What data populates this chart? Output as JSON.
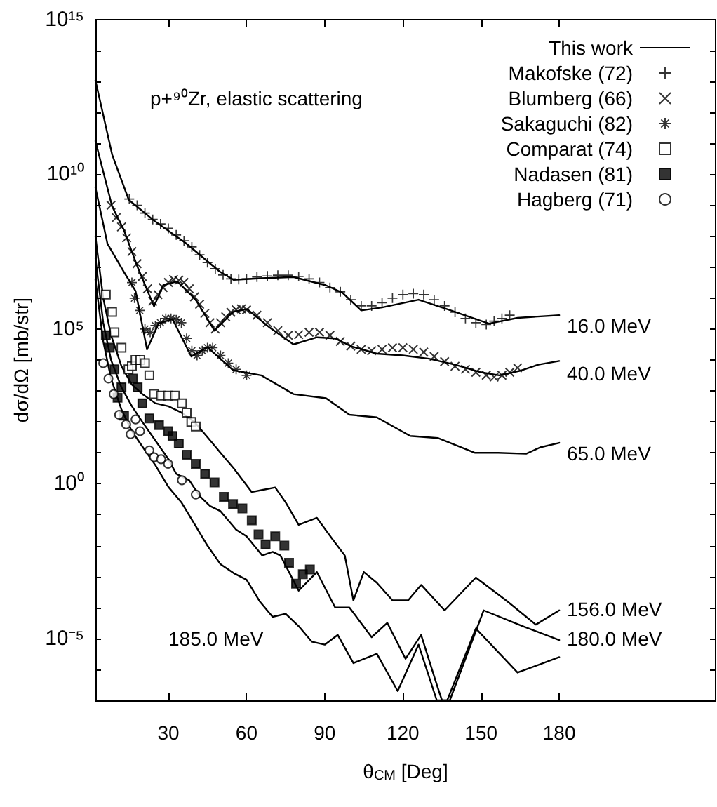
{
  "chart_data": {
    "type": "line",
    "title": "p+⁹⁰Zr, elastic scattering",
    "xlabel": "θ$_{CM}$ [Deg]",
    "ylabel": "dσ/dΩ [mb/str]",
    "log": "y",
    "legend": "top right",
    "grid": false,
    "xlim": [
      2,
      240
    ],
    "xticks": [
      30,
      60,
      90,
      120,
      150,
      180
    ],
    "ylim": [
      1e-07,
      1000000000000000.0
    ],
    "yticks": [
      {
        "value": 1e-07,
        "label": null
      },
      {
        "value": 1e-06,
        "label": null
      },
      {
        "value": 1e-05,
        "label": "10⁻⁵"
      },
      {
        "value": 0.0001,
        "label": null
      },
      {
        "value": 0.001,
        "label": null
      },
      {
        "value": 0.01,
        "label": null
      },
      {
        "value": 0.1,
        "label": null
      },
      {
        "value": 1,
        "label": "10⁰"
      },
      {
        "value": 10.0,
        "label": null
      },
      {
        "value": 100.0,
        "label": null
      },
      {
        "value": 1000.0,
        "label": null
      },
      {
        "value": 10000.0,
        "label": null
      },
      {
        "value": 100000.0,
        "label": "10⁵"
      },
      {
        "value": 1000000.0,
        "label": null
      },
      {
        "value": 10000000.0,
        "label": null
      },
      {
        "value": 100000000.0,
        "label": null
      },
      {
        "value": 1000000000.0,
        "label": null
      },
      {
        "value": 10000000000.0,
        "label": "10¹⁰"
      },
      {
        "value": 100000000000.0,
        "label": null
      },
      {
        "value": 1000000000000.0,
        "label": null
      },
      {
        "value": 10000000000000.0,
        "label": null
      },
      {
        "value": 100000000000000.0,
        "label": null
      },
      {
        "value": 1000000000000000.0,
        "label": "10¹⁵"
      }
    ],
    "annotations": [
      "16.0 MeV",
      "40.0 MeV",
      "65.0 MeV",
      "156.0 MeV",
      "180.0 MeV",
      "185.0 MeV"
    ],
    "series": [
      {
        "name": "This work",
        "color": "#000000",
        "marker": "none",
        "x": [
          2,
          8.4,
          14.8,
          24.5,
          36.8,
          49.7,
          55,
          65.7,
          78,
          90.4,
          96.8,
          104,
          112,
          126,
          137,
          153,
          164,
          180
        ],
        "values": [
          11000000000000.0,
          44000000000.0,
          1500000000.0,
          320000000.0,
          59000000.0,
          7200000.0,
          3900000.0,
          4400000.0,
          4800000.0,
          2600000.0,
          1500000.0,
          400000.0,
          500000.0,
          890000.0,
          440000.0,
          150000.0,
          230000.0,
          280000.0
        ]
      },
      {
        "color": "#000000",
        "marker": "none",
        "x": [
          2,
          8.4,
          12.9,
          18.2,
          24.5,
          28,
          33.4,
          40.5,
          47.7,
          54.8,
          60.2,
          69,
          78,
          87,
          94,
          100,
          110,
          120,
          130,
          140,
          150,
          157,
          165,
          172,
          180
        ],
        "values": [
          120000000000.0,
          930000000.0,
          160000000.0,
          10000000.0,
          540000.0,
          2600000.0,
          3500000.0,
          890000.0,
          89000.0,
          360000.0,
          440000.0,
          110000.0,
          32000.0,
          54000.0,
          50000.0,
          28000.0,
          16000.0,
          14000.0,
          11000.0,
          7100.0,
          4000.0,
          3200.0,
          4500.0,
          7100.0,
          9300.0
        ]
      },
      {
        "color": "#000000",
        "marker": "none",
        "x": [
          2,
          6.6,
          12.9,
          17.4,
          21.8,
          26.2,
          31.6,
          38.8,
          45,
          54.8,
          65.6,
          78,
          90.5,
          99.5,
          110,
          122.8,
          133.4,
          147.7,
          156.6,
          167.3,
          172.7,
          180
        ],
        "values": [
          3800000000.0,
          58000000.0,
          7100000.0,
          1700000.0,
          22000.0,
          150000.0,
          210000.0,
          13000.0,
          26000.0,
          4700.0,
          3200.0,
          790,
          580,
          170,
          140,
          35,
          30,
          10,
          10,
          9.3,
          15,
          21
        ]
      },
      {
        "color": "#000000",
        "marker": "none",
        "x": [
          2,
          5,
          8,
          12,
          16,
          20,
          25,
          30,
          35,
          40,
          45,
          50,
          55,
          62,
          66,
          71,
          75,
          80,
          87,
          93,
          97.7,
          101,
          105,
          110,
          116,
          122,
          127,
          136,
          148,
          160,
          171,
          180
        ],
        "values": [
          100000000.0,
          1000000.0,
          63000.0,
          6300.0,
          1600.0,
          790,
          400,
          320,
          200,
          100,
          32,
          10,
          3.2,
          0.54,
          0.63,
          0.76,
          0.25,
          0.047,
          0.079,
          0.016,
          0.0048,
          0.00017,
          0.0014,
          0.00063,
          0.00017,
          0.00017,
          0.00054,
          8.1e-05,
          0.00093,
          0.00016,
          2.8e-05,
          8.1e-05
        ]
      },
      {
        "color": "#000000",
        "marker": "none",
        "x": [
          2,
          5,
          8,
          12,
          16,
          20,
          25,
          30,
          33,
          38,
          42,
          46,
          50,
          56,
          60,
          66,
          70,
          73,
          80,
          87,
          94,
          99.5,
          108,
          114,
          121,
          127,
          133,
          135,
          138,
          151,
          166,
          180
        ],
        "values": [
          20000000.0,
          160000.0,
          10000.0,
          1300.0,
          320,
          100,
          25,
          6.3,
          2.1,
          1.3,
          0.4,
          0.19,
          0.13,
          0.033,
          0.02,
          0.0048,
          0.0063,
          0.0048,
          0.00035,
          0.0014,
          0.0001,
          0.0001,
          1.1e-05,
          3.2e-05,
          2.2e-06,
          1.3e-05,
          3.2e-07,
          1e-07,
          1e-07,
          8.1e-05,
          2.5e-05,
          8.9e-06
        ]
      },
      {
        "color": "#000000",
        "marker": "none",
        "x": [
          2,
          5,
          8,
          12,
          16,
          20,
          25,
          30,
          35,
          40,
          45,
          50,
          55,
          60,
          65,
          70,
          75,
          80,
          85,
          90,
          95,
          101,
          110,
          118,
          126,
          133,
          137,
          148,
          164,
          180
        ],
        "values": [
          4000000.0,
          40000.0,
          2500.0,
          250,
          50,
          16,
          4.0,
          0.79,
          0.25,
          0.05,
          0.01,
          0.0025,
          0.0013,
          0.00079,
          0.00016,
          5e-05,
          6.3e-05,
          2.5e-05,
          7.9e-06,
          6.3e-06,
          1.3e-05,
          1.6e-06,
          3.2e-06,
          2e-07,
          6.3e-06,
          1e-07,
          1e-07,
          2.1e-05,
          7.9e-07,
          2.5e-06
        ]
      },
      {
        "name": "Makofske (72)",
        "type": "scatter",
        "color": "#000000",
        "marker": "plus",
        "x": [
          15,
          18,
          21,
          24,
          27,
          30,
          33,
          36,
          39,
          42,
          45,
          48,
          51,
          54,
          57,
          60,
          64,
          68,
          72,
          76,
          80,
          84,
          88,
          92,
          96,
          100,
          104,
          108,
          112,
          116,
          120,
          124,
          128,
          132,
          136,
          140,
          144,
          148,
          152,
          155,
          158,
          161
        ],
        "values": [
          1600000000.0,
          1000000000.0,
          560000000.0,
          350000000.0,
          250000000.0,
          180000000.0,
          110000000.0,
          71000000.0,
          45000000.0,
          25000000.0,
          14000000.0,
          8900000.0,
          5600000.0,
          4200000.0,
          4000000.0,
          4200000.0,
          4800000.0,
          5200000.0,
          5500000.0,
          5500000.0,
          5000000.0,
          4200000.0,
          3200000.0,
          2200000.0,
          1600000.0,
          890000.0,
          560000.0,
          560000.0,
          710000.0,
          1000000.0,
          1300000.0,
          1400000.0,
          1300000.0,
          890000.0,
          560000.0,
          350000.0,
          220000.0,
          160000.0,
          140000.0,
          180000.0,
          220000.0,
          280000.0
        ]
      },
      {
        "name": "Blumberg (66)",
        "type": "scatter",
        "color": "#000000",
        "marker": "cross",
        "x": [
          8,
          10,
          12,
          14,
          16,
          18,
          20,
          22,
          24,
          26,
          28,
          30,
          32,
          34,
          36,
          38,
          40,
          42,
          44,
          46,
          48,
          50,
          52,
          54,
          56,
          58,
          60,
          64,
          68,
          72,
          76,
          80,
          84,
          88,
          92,
          96,
          100,
          104,
          108,
          112,
          116,
          120,
          124,
          128,
          132,
          136,
          140,
          144,
          148,
          152,
          155,
          158,
          161,
          164
        ],
        "values": [
          1000000000.0,
          400000000.0,
          200000000.0,
          89000000.0,
          32000000.0,
          13000000.0,
          5000000.0,
          2000000.0,
          790000.0,
          1300000.0,
          2200000.0,
          3200000.0,
          4000000.0,
          3800000.0,
          3200000.0,
          2000000.0,
          1100000.0,
          630000.0,
          320000.0,
          160000.0,
          100000.0,
          160000.0,
          250000.0,
          350000.0,
          420000.0,
          450000.0,
          420000.0,
          280000.0,
          160000.0,
          89000.0,
          63000.0,
          66000.0,
          79000.0,
          79000.0,
          63000.0,
          40000.0,
          28000.0,
          22000.0,
          20000.0,
          22000.0,
          25000.0,
          25000.0,
          22000.0,
          18000.0,
          13000.0,
          8900.0,
          6300.0,
          5000.0,
          4000.0,
          3200.0,
          2800.0,
          3200.0,
          4000.0,
          5600.0
        ]
      },
      {
        "name": "Sakaguchi (82)",
        "type": "scatter",
        "color": "#000000",
        "marker": "star",
        "x": [
          16,
          17,
          19,
          21,
          23,
          25,
          27,
          29,
          31,
          33,
          35,
          37,
          39,
          41,
          43,
          45,
          47,
          50,
          53,
          56,
          60
        ],
        "values": [
          3200000.0,
          1000000.0,
          400000.0,
          100000.0,
          79000.0,
          130000.0,
          160000.0,
          220000.0,
          220000.0,
          200000.0,
          160000.0,
          50000.0,
          20000.0,
          14000.0,
          20000.0,
          25000.0,
          25000.0,
          14000.0,
          7900.0,
          5000.0,
          3200.0
        ]
      },
      {
        "name": "Comparat (74)",
        "type": "scatter",
        "color": "#000000",
        "marker": "square-open",
        "x": [
          6,
          8.4,
          9.3,
          12,
          14.7,
          16,
          17.4,
          19.2,
          21,
          22.7,
          24.5,
          27.2,
          29.9,
          32.5,
          35.2,
          37,
          38.8,
          40.5
        ],
        "values": [
          1300000.0,
          360000.0,
          79000.0,
          25000.0,
          5000.0,
          6300.0,
          10000.0,
          10000.0,
          7900.0,
          3200.0,
          790,
          710,
          710,
          710,
          400,
          200,
          100,
          71
        ]
      },
      {
        "name": "Nadasen (81)",
        "type": "scatter",
        "color": "#000000",
        "marker": "square",
        "x": [
          6,
          7.5,
          9.3,
          10.5,
          12,
          13,
          16.4,
          18.2,
          20,
          22.7,
          26.4,
          29.9,
          31.6,
          34,
          37,
          40.5,
          44.1,
          47.7,
          51.3,
          54.8,
          58.4,
          62,
          64.6,
          67.3,
          71,
          74.5,
          76.3,
          79,
          81.6,
          84.3
        ],
        "values": [
          63000.0,
          25000.0,
          5000.0,
          600,
          1300.0,
          160,
          2500.0,
          1300.0,
          400,
          130,
          79,
          50,
          35,
          20,
          8.7,
          4.4,
          2.1,
          1.1,
          0.38,
          0.22,
          0.16,
          0.066,
          0.023,
          0.011,
          0.02,
          0.01,
          0.0028,
          0.00059,
          0.0012,
          0.0017
        ]
      },
      {
        "name": "Hagberg (71)",
        "type": "scatter",
        "color": "#000000",
        "marker": "circle-open",
        "x": [
          5,
          7,
          9,
          11.1,
          13.8,
          15.5,
          17.4,
          19.1,
          22.7,
          24.5,
          27.2,
          29.9,
          35.2,
          40.5
        ],
        "values": [
          7900.0,
          2500.0,
          790,
          170,
          83,
          40,
          120,
          50,
          12,
          7.2,
          6.2,
          4.4,
          1.3,
          0.45
        ]
      }
    ]
  }
}
